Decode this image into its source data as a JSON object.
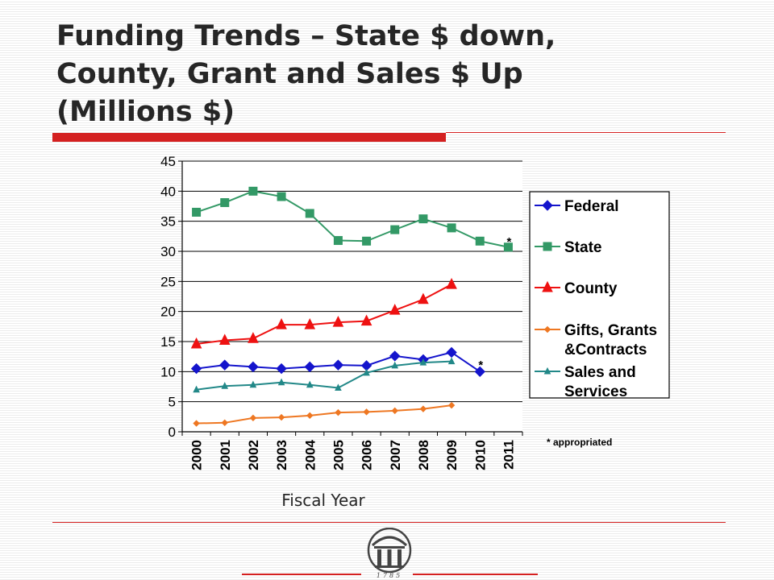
{
  "slide": {
    "title_lines": [
      "Funding Trends – State $ down,",
      "County, Grant and Sales $ Up",
      "(Millions $)"
    ],
    "accent_color": "#d42020",
    "logo_year": "1785",
    "logo_icon": "arch-columns-icon"
  },
  "chart_data": {
    "type": "line",
    "title": "",
    "xlabel": "Fiscal Year",
    "ylabel": "",
    "ylim": [
      0,
      45
    ],
    "yticks": [
      0,
      5,
      10,
      15,
      20,
      25,
      30,
      35,
      40,
      45
    ],
    "grid": true,
    "legend_position": "right",
    "categories": [
      "2000",
      "2001",
      "2002",
      "2003",
      "2004",
      "2005",
      "2006",
      "2007",
      "2008",
      "2009",
      "2010",
      "2011"
    ],
    "series": [
      {
        "name": "Federal",
        "color": "#1414cc",
        "marker": "diamond",
        "values": [
          10.5,
          11.1,
          10.8,
          10.5,
          10.8,
          11.1,
          11.0,
          12.6,
          12.0,
          13.2,
          10.0,
          null
        ]
      },
      {
        "name": "State",
        "color": "#339966",
        "marker": "square",
        "values": [
          36.5,
          38.1,
          40.0,
          39.1,
          36.3,
          31.8,
          31.7,
          33.6,
          35.4,
          33.9,
          31.7,
          30.7
        ]
      },
      {
        "name": "County",
        "color": "#ee1111",
        "marker": "triangle",
        "values": [
          14.6,
          15.2,
          15.5,
          17.8,
          17.8,
          18.2,
          18.4,
          20.2,
          22.0,
          24.5,
          null,
          null
        ]
      },
      {
        "name": "Gifts, Grants &Contracts",
        "color": "#ee7722",
        "marker": "small-diamond",
        "values": [
          1.4,
          1.5,
          2.3,
          2.4,
          2.7,
          3.2,
          3.3,
          3.5,
          3.8,
          4.4,
          null,
          null
        ]
      },
      {
        "name": "Sales and Services",
        "color": "#228888",
        "marker": "small-triangle",
        "values": [
          7.0,
          7.6,
          7.8,
          8.2,
          7.8,
          7.3,
          9.8,
          11.0,
          11.5,
          11.7,
          null,
          null
        ]
      }
    ],
    "annotations": [
      {
        "text": "*",
        "category": "2011",
        "value": 32.3
      },
      {
        "text": "*",
        "category": "2010",
        "value": 11.8
      }
    ],
    "footnote": "* appropriated"
  }
}
